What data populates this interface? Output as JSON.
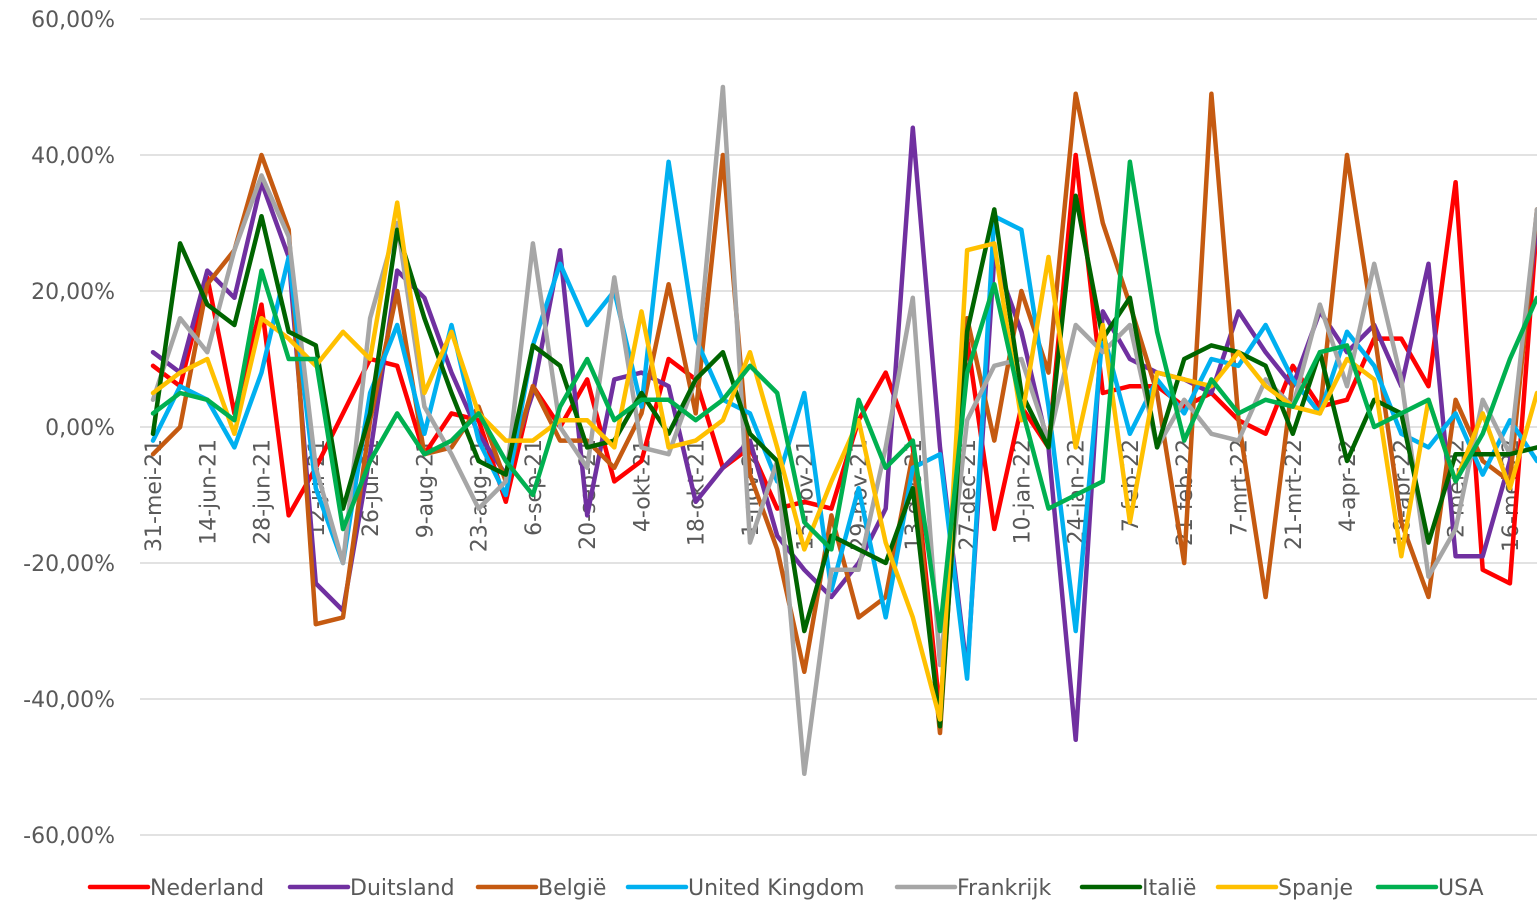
{
  "chart_data": {
    "type": "line",
    "categories": [
      "31-mei-21",
      null,
      "14-jun-21",
      null,
      "28-jun-21",
      null,
      "12-jul-21",
      null,
      "26-jul-21",
      null,
      "9-aug-21",
      null,
      "23-aug-21",
      null,
      "6-sep-21",
      null,
      "20-sep-21",
      null,
      "4-okt-21",
      null,
      "18-okt-21",
      null,
      "1-nov-21",
      null,
      "15-nov-21",
      null,
      "29-nov-21",
      null,
      "13-dec-21",
      null,
      "27-dec-21",
      null,
      "10-jan-22",
      null,
      "24-jan-22",
      null,
      "7-feb-22",
      null,
      "21-feb-22",
      null,
      "7-mrt-22",
      null,
      "21-mrt-22",
      null,
      "4-apr-22",
      null,
      "18-apr-22",
      null,
      "2-mei-22",
      null,
      "16-mei-22",
      null
    ],
    "ylim": [
      -60,
      60
    ],
    "yticks": [
      {
        "value": -60,
        "label": "-60,00%"
      },
      {
        "value": -40,
        "label": "-40,00%"
      },
      {
        "value": -20,
        "label": "-20,00%"
      },
      {
        "value": 0,
        "label": "0,00%"
      },
      {
        "value": 20,
        "label": "20,00%"
      },
      {
        "value": 40,
        "label": "40,00%"
      },
      {
        "value": 60,
        "label": "60,00%"
      }
    ],
    "grid": true,
    "legend": "bottom",
    "series": [
      {
        "name": "Nederland",
        "color": "#ff0000",
        "values": [
          9,
          6,
          22,
          2,
          18,
          -13,
          -6,
          2,
          10,
          9,
          -4,
          2,
          1,
          -11,
          6,
          0,
          7,
          -8,
          -5,
          10,
          7,
          -6,
          -3,
          -12,
          -11,
          -12,
          1,
          8,
          -3,
          -42,
          13,
          -15,
          3,
          -3,
          40,
          5,
          6,
          6,
          3,
          5,
          1,
          -1,
          9,
          3,
          4,
          13,
          13,
          6,
          36,
          -21,
          -23,
          30
        ]
      },
      {
        "name": "Duitsland",
        "color": "#7030a0",
        "values": [
          11,
          8,
          23,
          19,
          36,
          25,
          -23,
          -27,
          -4,
          23,
          19,
          8,
          -1,
          -7,
          5,
          26,
          -13,
          7,
          8,
          6,
          -11,
          -6,
          -2,
          -16,
          -21,
          -25,
          -20,
          -12,
          44,
          -3,
          -36,
          25,
          14,
          -3,
          -46,
          17,
          10,
          8,
          7,
          5,
          17,
          11,
          6,
          17,
          11,
          15,
          6,
          24,
          -19,
          -19,
          -5,
          30
        ]
      },
      {
        "name": "België",
        "color": "#c55a11",
        "values": [
          -4,
          0,
          21,
          26,
          40,
          29,
          -29,
          -28,
          1,
          20,
          -4,
          -3,
          3,
          -8,
          6,
          -2,
          -2,
          -6,
          2,
          21,
          2,
          40,
          -7,
          -18,
          -36,
          -13,
          -28,
          -25,
          -4,
          -45,
          16,
          -2,
          20,
          8,
          49,
          30,
          18,
          5,
          -20,
          49,
          1,
          -25,
          7,
          2,
          40,
          14,
          -14,
          -25,
          4,
          -5,
          -8,
          32
        ]
      },
      {
        "name": "United Kingdom",
        "color": "#00b0f0",
        "values": [
          -2,
          6,
          4,
          -3,
          8,
          25,
          -9,
          -20,
          5,
          15,
          -1,
          15,
          -2,
          -10,
          12,
          24,
          15,
          20,
          3,
          39,
          13,
          4,
          2,
          -8,
          5,
          -24,
          -9,
          -28,
          -6,
          -4,
          -37,
          31,
          29,
          3,
          -30,
          14,
          -1,
          7,
          2,
          10,
          9,
          15,
          7,
          2,
          14,
          9,
          -1,
          -3,
          2,
          -7,
          1,
          -5
        ]
      },
      {
        "name": "Frankrijk",
        "color": "#a6a6a6",
        "values": [
          4,
          16,
          11,
          26,
          37,
          28,
          -6,
          -20,
          16,
          30,
          3,
          -4,
          -12,
          -8,
          27,
          0,
          -6,
          22,
          -3,
          -4,
          7,
          50,
          -17,
          -5,
          -51,
          -21,
          -21,
          -3,
          19,
          -35,
          1,
          9,
          10,
          -2,
          15,
          11,
          15,
          -3,
          4,
          -1,
          -2,
          7,
          3,
          18,
          6,
          24,
          7,
          -22,
          -15,
          4,
          -4,
          32
        ]
      },
      {
        "name": "Italië",
        "color": "#006400",
        "values": [
          -1,
          27,
          18,
          15,
          31,
          14,
          12,
          -12,
          2,
          29,
          16,
          5,
          -5,
          -7,
          12,
          9,
          -3,
          -2,
          5,
          -1,
          7,
          11,
          -1,
          -5,
          -30,
          -16,
          -18,
          -20,
          -9,
          -44,
          14,
          32,
          5,
          -3,
          34,
          13,
          19,
          -3,
          10,
          12,
          11,
          9,
          -1,
          11,
          -5,
          4,
          2,
          -17,
          -4,
          -4,
          -4,
          -3
        ]
      },
      {
        "name": "Spanje",
        "color": "#ffc000",
        "values": [
          5,
          8,
          10,
          -1,
          16,
          13,
          9,
          14,
          10,
          33,
          5,
          14,
          2,
          -2,
          -2,
          1,
          1,
          -3,
          17,
          -3,
          -2,
          1,
          11,
          -3,
          -18,
          -8,
          1,
          -17,
          -28,
          -43,
          26,
          27,
          1,
          25,
          -3,
          15,
          -14,
          8,
          7,
          6,
          11,
          6,
          3,
          2,
          10,
          7,
          -19,
          4,
          -8,
          2,
          -9,
          5
        ]
      },
      {
        "name": "USA",
        "color": "#00b050",
        "values": [
          2,
          5,
          4,
          1,
          23,
          10,
          10,
          -15,
          -5,
          2,
          -4,
          -2,
          2,
          -5,
          -10,
          3,
          10,
          1,
          4,
          4,
          1,
          4,
          9,
          5,
          -14,
          -18,
          4,
          -6,
          -2,
          -30,
          8,
          21,
          3,
          -12,
          -10,
          -8,
          39,
          14,
          -2,
          7,
          2,
          4,
          3,
          11,
          12,
          0,
          2,
          4,
          -8,
          -1,
          10,
          19
        ]
      }
    ]
  }
}
